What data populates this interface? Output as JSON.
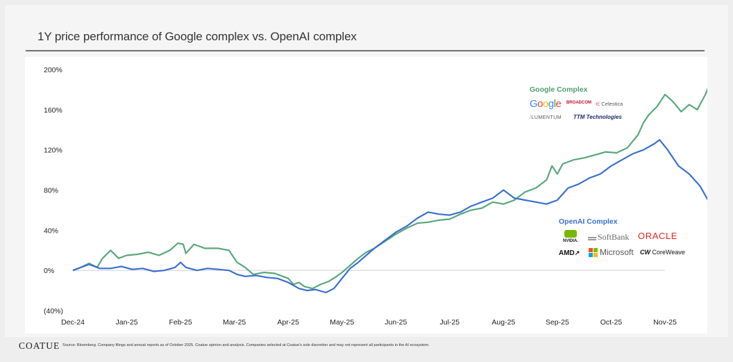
{
  "title": "1Y price performance of Google complex vs. OpenAI complex",
  "footer": {
    "brand": "COATUE",
    "source": "Source: Bloomberg. Company filings and annual reports as of October 2025. Coatue opinion and analysis. Companies selected at Coatue's sole discretion and may not represent all participants in the AI ecosystem."
  },
  "colors": {
    "google": "#58a77a",
    "openai": "#3a6fcf",
    "google_title": "#4f9d6f",
    "openai_title": "#3a6fcf"
  },
  "legends": {
    "google": {
      "title": "Google Complex",
      "logos": [
        {
          "name": "google-logo",
          "text": "Google"
        },
        {
          "name": "broadcom-logo",
          "text": "BROADCOM"
        },
        {
          "name": "celestica-logo",
          "text": "Celestica"
        },
        {
          "name": "lumentum-logo",
          "text": "LUMENTUM"
        },
        {
          "name": "ttm-logo",
          "text": "TTM Technologies"
        }
      ]
    },
    "openai": {
      "title": "OpenAI Complex",
      "logos": [
        {
          "name": "nvidia-logo",
          "text": "NVIDIA."
        },
        {
          "name": "softbank-logo",
          "text": "SoftBank"
        },
        {
          "name": "oracle-logo",
          "text": "ORACLE"
        },
        {
          "name": "amd-logo",
          "text": "AMD"
        },
        {
          "name": "microsoft-logo",
          "text": "Microsoft"
        },
        {
          "name": "coreweave-logo",
          "text": "CoreWeave"
        }
      ]
    }
  },
  "chart_data": {
    "type": "line",
    "title": "1Y price performance of Google complex vs. OpenAI complex",
    "xlabel": "",
    "ylabel": "",
    "x_ticks": [
      "Dec-24",
      "Jan-25",
      "Feb-25",
      "Mar-25",
      "Apr-25",
      "May-25",
      "Jun-25",
      "Jul-25",
      "Aug-25",
      "Sep-25",
      "Oct-25",
      "Nov-25"
    ],
    "y_ticks": [
      "200%",
      "160%",
      "120%",
      "80%",
      "40%",
      "0%",
      "(40%)"
    ],
    "ylim": [
      -40,
      200
    ],
    "grid": false,
    "series": [
      {
        "name": "Google Complex",
        "points": [
          [
            0,
            0
          ],
          [
            0.15,
            3
          ],
          [
            0.3,
            7
          ],
          [
            0.45,
            3
          ],
          [
            0.55,
            12
          ],
          [
            0.7,
            20
          ],
          [
            0.85,
            12
          ],
          [
            1,
            15
          ],
          [
            1.2,
            16
          ],
          [
            1.4,
            18
          ],
          [
            1.6,
            15
          ],
          [
            1.8,
            20
          ],
          [
            1.95,
            27
          ],
          [
            2.05,
            26
          ],
          [
            2.1,
            17
          ],
          [
            2.25,
            26
          ],
          [
            2.45,
            22
          ],
          [
            2.7,
            22
          ],
          [
            2.9,
            20
          ],
          [
            3.05,
            8
          ],
          [
            3.2,
            3
          ],
          [
            3.35,
            -4
          ],
          [
            3.55,
            -2
          ],
          [
            3.75,
            -3
          ],
          [
            3.9,
            -6
          ],
          [
            4.0,
            -8
          ],
          [
            4.1,
            -14
          ],
          [
            4.2,
            -12
          ],
          [
            4.3,
            -16
          ],
          [
            4.45,
            -18
          ],
          [
            4.6,
            -14
          ],
          [
            4.75,
            -11
          ],
          [
            4.9,
            -6
          ],
          [
            5.0,
            -2
          ],
          [
            5.15,
            5
          ],
          [
            5.3,
            12
          ],
          [
            5.45,
            18
          ],
          [
            5.6,
            22
          ],
          [
            5.8,
            29
          ],
          [
            6.0,
            36
          ],
          [
            6.2,
            42
          ],
          [
            6.4,
            47
          ],
          [
            6.6,
            48
          ],
          [
            6.8,
            50
          ],
          [
            7.0,
            51
          ],
          [
            7.2,
            56
          ],
          [
            7.4,
            60
          ],
          [
            7.6,
            62
          ],
          [
            7.8,
            68
          ],
          [
            8.0,
            66
          ],
          [
            8.2,
            70
          ],
          [
            8.4,
            78
          ],
          [
            8.6,
            82
          ],
          [
            8.8,
            90
          ],
          [
            8.9,
            104
          ],
          [
            9.0,
            96
          ],
          [
            9.1,
            106
          ],
          [
            9.3,
            110
          ],
          [
            9.5,
            112
          ],
          [
            9.7,
            115
          ],
          [
            9.9,
            118
          ],
          [
            10.1,
            117
          ],
          [
            10.3,
            122
          ],
          [
            10.5,
            135
          ],
          [
            10.6,
            147
          ],
          [
            10.7,
            155
          ],
          [
            10.85,
            163
          ],
          [
            11.0,
            175
          ],
          [
            11.15,
            168
          ],
          [
            11.3,
            158
          ],
          [
            11.45,
            165
          ],
          [
            11.6,
            160
          ],
          [
            11.75,
            175
          ],
          [
            11.85,
            188
          ],
          [
            11.95,
            190
          ]
        ]
      },
      {
        "name": "OpenAI Complex",
        "points": [
          [
            0,
            0
          ],
          [
            0.15,
            3
          ],
          [
            0.3,
            6
          ],
          [
            0.5,
            2
          ],
          [
            0.7,
            2
          ],
          [
            0.9,
            4
          ],
          [
            1.1,
            1
          ],
          [
            1.3,
            2
          ],
          [
            1.5,
            -1
          ],
          [
            1.7,
            0
          ],
          [
            1.9,
            3
          ],
          [
            2.0,
            8
          ],
          [
            2.1,
            3
          ],
          [
            2.3,
            0
          ],
          [
            2.5,
            2
          ],
          [
            2.7,
            1
          ],
          [
            2.9,
            0
          ],
          [
            3.05,
            -4
          ],
          [
            3.2,
            -6
          ],
          [
            3.4,
            -5
          ],
          [
            3.6,
            -7
          ],
          [
            3.8,
            -8
          ],
          [
            4.0,
            -12
          ],
          [
            4.2,
            -18
          ],
          [
            4.35,
            -20
          ],
          [
            4.5,
            -19
          ],
          [
            4.7,
            -22
          ],
          [
            4.85,
            -18
          ],
          [
            5.0,
            -8
          ],
          [
            5.15,
            2
          ],
          [
            5.3,
            8
          ],
          [
            5.45,
            15
          ],
          [
            5.6,
            22
          ],
          [
            5.8,
            30
          ],
          [
            6.0,
            38
          ],
          [
            6.2,
            44
          ],
          [
            6.4,
            52
          ],
          [
            6.6,
            58
          ],
          [
            6.8,
            56
          ],
          [
            7.0,
            55
          ],
          [
            7.2,
            58
          ],
          [
            7.4,
            64
          ],
          [
            7.6,
            68
          ],
          [
            7.8,
            72
          ],
          [
            8.0,
            80
          ],
          [
            8.2,
            72
          ],
          [
            8.4,
            70
          ],
          [
            8.6,
            68
          ],
          [
            8.8,
            66
          ],
          [
            9.0,
            70
          ],
          [
            9.2,
            82
          ],
          [
            9.4,
            86
          ],
          [
            9.6,
            92
          ],
          [
            9.8,
            96
          ],
          [
            10.0,
            104
          ],
          [
            10.2,
            110
          ],
          [
            10.4,
            116
          ],
          [
            10.6,
            120
          ],
          [
            10.8,
            126
          ],
          [
            10.9,
            130
          ],
          [
            11.05,
            120
          ],
          [
            11.25,
            104
          ],
          [
            11.45,
            96
          ],
          [
            11.65,
            84
          ],
          [
            11.8,
            70
          ],
          [
            11.95,
            65
          ]
        ]
      }
    ]
  }
}
